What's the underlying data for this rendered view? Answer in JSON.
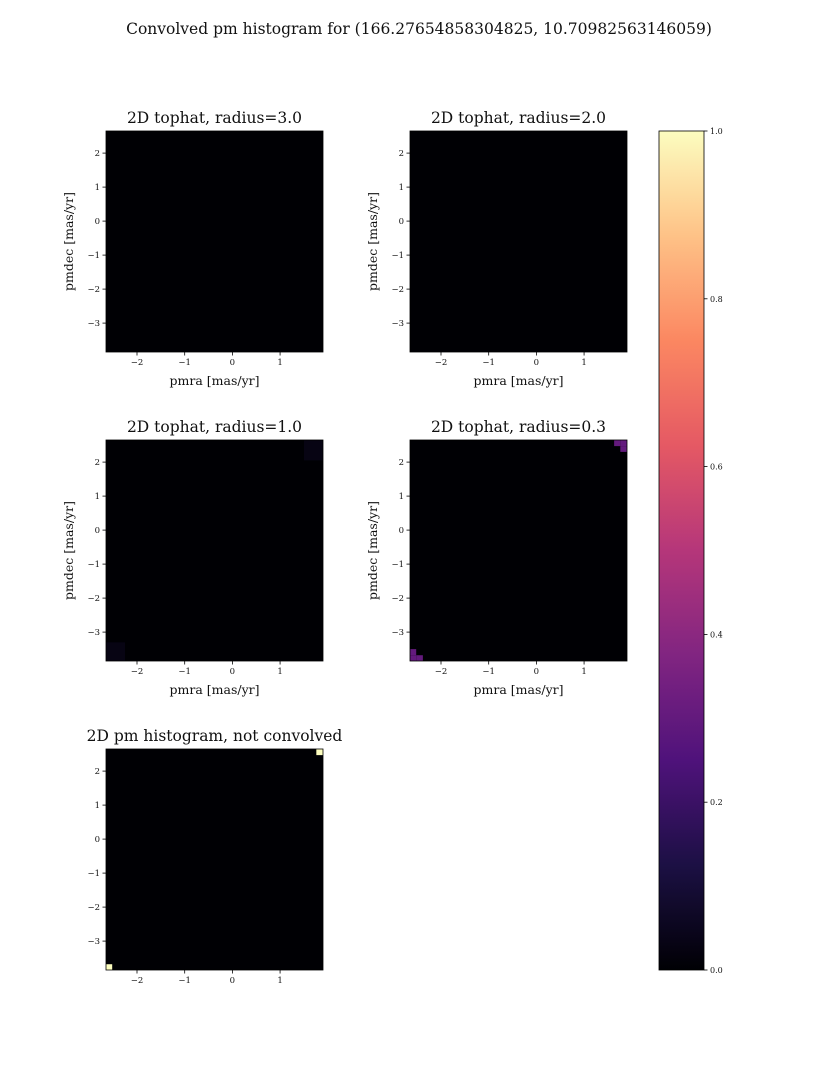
{
  "figure": {
    "title": "Convolved pm histogram for (166.27654858304825, 10.70982563146059)"
  },
  "colormap": {
    "name": "magma",
    "stops": [
      "#000004",
      "#1c1044",
      "#4f127b",
      "#812581",
      "#b5367a",
      "#e55964",
      "#fb8761",
      "#fec287",
      "#fcfdbf"
    ]
  },
  "colorbar": {
    "range": [
      0,
      1
    ],
    "ticks": [
      "0.0",
      "0.2",
      "0.4",
      "0.6",
      "0.8",
      "1.0"
    ]
  },
  "chart_data": [
    {
      "type": "heatmap",
      "title": "2D tophat, radius=3.0",
      "xlabel": "pmra [mas/yr]",
      "ylabel": "pmdec [mas/yr]",
      "xlim": [
        -2.65,
        1.9
      ],
      "ylim": [
        -3.85,
        2.65
      ],
      "xticks": [
        -2,
        -1,
        0,
        1
      ],
      "yticks": [
        -3,
        -2,
        -1,
        0,
        1,
        2
      ],
      "xtick_labels": [
        "−2",
        "−1",
        "0",
        "1"
      ],
      "ytick_labels": [
        "−3",
        "−2",
        "−1",
        "0",
        "1",
        "2"
      ],
      "background": 0.0,
      "cells": []
    },
    {
      "type": "heatmap",
      "title": "2D tophat, radius=2.0",
      "xlabel": "pmra [mas/yr]",
      "ylabel": "pmdec [mas/yr]",
      "xlim": [
        -2.65,
        1.9
      ],
      "ylim": [
        -3.85,
        2.65
      ],
      "xticks": [
        -2,
        -1,
        0,
        1
      ],
      "yticks": [
        -3,
        -2,
        -1,
        0,
        1,
        2
      ],
      "xtick_labels": [
        "−2",
        "−1",
        "0",
        "1"
      ],
      "ytick_labels": [
        "−3",
        "−2",
        "−1",
        "0",
        "1",
        "2"
      ],
      "background": 0.0,
      "cells": []
    },
    {
      "type": "heatmap",
      "title": "2D tophat, radius=1.0",
      "xlabel": "pmra [mas/yr]",
      "ylabel": "pmdec [mas/yr]",
      "xlim": [
        -2.65,
        1.9
      ],
      "ylim": [
        -3.85,
        2.65
      ],
      "xticks": [
        -2,
        -1,
        0,
        1
      ],
      "yticks": [
        -3,
        -2,
        -1,
        0,
        1,
        2
      ],
      "xtick_labels": [
        "−2",
        "−1",
        "0",
        "1"
      ],
      "ytick_labels": [
        "−3",
        "−2",
        "−1",
        "0",
        "1",
        "2"
      ],
      "background": 0.0,
      "cells": [
        {
          "x0": 1.5,
          "x1": 1.9,
          "y0": 2.05,
          "y1": 2.65,
          "v": 0.03
        },
        {
          "x0": -2.65,
          "x1": -2.25,
          "y0": -3.85,
          "y1": -3.3,
          "v": 0.03
        }
      ]
    },
    {
      "type": "heatmap",
      "title": "2D tophat, radius=0.3",
      "xlabel": "pmra [mas/yr]",
      "ylabel": "pmdec [mas/yr]",
      "xlim": [
        -2.65,
        1.9
      ],
      "ylim": [
        -3.85,
        2.65
      ],
      "xticks": [
        -2,
        -1,
        0,
        1
      ],
      "yticks": [
        -3,
        -2,
        -1,
        0,
        1,
        2
      ],
      "xtick_labels": [
        "−2",
        "−1",
        "0",
        "1"
      ],
      "ytick_labels": [
        "−3",
        "−2",
        "−1",
        "0",
        "1",
        "2"
      ],
      "background": 0.0,
      "cells": [
        {
          "x0": 1.63,
          "x1": 1.76,
          "y0": 2.47,
          "y1": 2.65,
          "v": 0.3
        },
        {
          "x0": 1.76,
          "x1": 1.9,
          "y0": 2.47,
          "y1": 2.65,
          "v": 0.3
        },
        {
          "x0": 1.76,
          "x1": 1.9,
          "y0": 2.3,
          "y1": 2.47,
          "v": 0.3
        },
        {
          "x0": -2.65,
          "x1": -2.52,
          "y0": -3.68,
          "y1": -3.5,
          "v": 0.3
        },
        {
          "x0": -2.65,
          "x1": -2.52,
          "y0": -3.85,
          "y1": -3.68,
          "v": 0.3
        },
        {
          "x0": -2.52,
          "x1": -2.38,
          "y0": -3.85,
          "y1": -3.68,
          "v": 0.3
        }
      ]
    },
    {
      "type": "heatmap",
      "title": "2D pm histogram, not convolved",
      "xlabel": "",
      "ylabel": "",
      "xlim": [
        -2.65,
        1.9
      ],
      "ylim": [
        -3.85,
        2.65
      ],
      "xticks": [
        -2,
        -1,
        0,
        1
      ],
      "yticks": [
        -3,
        -2,
        -1,
        0,
        1,
        2
      ],
      "xtick_labels": [
        "−2",
        "−1",
        "0",
        "1"
      ],
      "ytick_labels": [
        "−3",
        "−2",
        "−1",
        "0",
        "1",
        "2"
      ],
      "background": 0.0,
      "cells": [
        {
          "x0": 1.76,
          "x1": 1.9,
          "y0": 2.47,
          "y1": 2.65,
          "v": 1.0
        },
        {
          "x0": -2.65,
          "x1": -2.52,
          "y0": -3.85,
          "y1": -3.68,
          "v": 1.0
        }
      ]
    }
  ]
}
